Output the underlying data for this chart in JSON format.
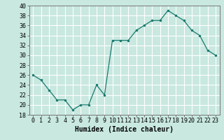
{
  "x": [
    0,
    1,
    2,
    3,
    4,
    5,
    6,
    7,
    8,
    9,
    10,
    11,
    12,
    13,
    14,
    15,
    16,
    17,
    18,
    19,
    20,
    21,
    22,
    23
  ],
  "y": [
    26,
    25,
    23,
    21,
    21,
    19,
    20,
    20,
    24,
    22,
    33,
    33,
    33,
    35,
    36,
    37,
    37,
    39,
    38,
    37,
    35,
    34,
    31,
    30
  ],
  "title": "",
  "xlabel": "Humidex (Indice chaleur)",
  "ylabel": "",
  "ylim": [
    18,
    40
  ],
  "xlim": [
    -0.5,
    23.5
  ],
  "yticks": [
    18,
    20,
    22,
    24,
    26,
    28,
    30,
    32,
    34,
    36,
    38,
    40
  ],
  "xticks": [
    0,
    1,
    2,
    3,
    4,
    5,
    6,
    7,
    8,
    9,
    10,
    11,
    12,
    13,
    14,
    15,
    16,
    17,
    18,
    19,
    20,
    21,
    22,
    23
  ],
  "line_color": "#1a7a6e",
  "marker_color": "#1a7a6e",
  "bg_color": "#c8e8e0",
  "grid_color": "#ffffff",
  "axes_color": "#777777",
  "xlabel_fontsize": 7,
  "tick_fontsize": 6
}
